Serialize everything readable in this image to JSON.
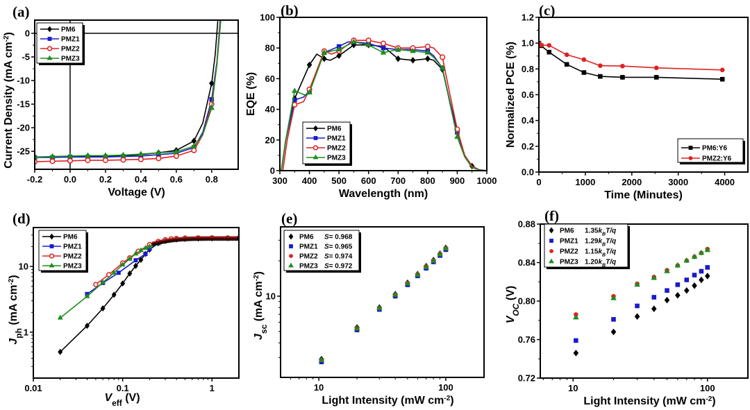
{
  "colors": {
    "PM6": "#000000",
    "PMZ1": "#1a1acc",
    "PMZ2": "#e02020",
    "PMZ3": "#1e8c1e",
    "PM6:Y6": "#000000",
    "PMZ2:Y6": "#e02020"
  },
  "chart_data": [
    {
      "panel": "(a)",
      "type": "line",
      "xlabel": "Voltage (V)",
      "ylabel": "Current Density (mA cm⁻²)",
      "xlim": [
        -0.2,
        0.95
      ],
      "ylim": [
        -28.8,
        2.8
      ],
      "xticks": [
        -0.2,
        0.0,
        0.2,
        0.4,
        0.6,
        0.8
      ],
      "xtick_labels": [
        "-0.2",
        "0.0",
        "0.2",
        "0.4",
        "0.6",
        "0.8"
      ],
      "yticks": [
        0,
        -5,
        -10,
        -15,
        -20,
        -25
      ],
      "ytick_labels": [
        "0",
        "-5",
        "-10",
        "-15",
        "-20",
        "-25"
      ],
      "legend": "top-left",
      "reference_lines": {
        "x": 0,
        "y": 0
      },
      "series": [
        {
          "name": "PM6",
          "marker": "diamond",
          "x": [
            -0.2,
            -0.1,
            0.0,
            0.1,
            0.2,
            0.3,
            0.4,
            0.5,
            0.6,
            0.7,
            0.75,
            0.8,
            0.82,
            0.835
          ],
          "y": [
            -26.2,
            -26.2,
            -26.1,
            -26.0,
            -26.0,
            -25.9,
            -25.7,
            -25.3,
            -24.8,
            -22.8,
            -19.0,
            -10.6,
            -4.5,
            2.8
          ],
          "marker_x": [
            -0.2,
            -0.1,
            0.0,
            0.1,
            0.2,
            0.3,
            0.4,
            0.5,
            0.6,
            0.7,
            0.8
          ]
        },
        {
          "name": "PMZ1",
          "marker": "square",
          "x": [
            -0.2,
            -0.1,
            0.0,
            0.1,
            0.2,
            0.3,
            0.4,
            0.5,
            0.6,
            0.7,
            0.75,
            0.8,
            0.83,
            0.848
          ],
          "y": [
            -26.3,
            -26.3,
            -26.2,
            -26.2,
            -26.2,
            -26.1,
            -26.0,
            -25.7,
            -25.4,
            -24.2,
            -21.0,
            -14.0,
            -6.0,
            2.8
          ],
          "marker_x": [
            -0.2,
            -0.1,
            0.0,
            0.1,
            0.2,
            0.3,
            0.4,
            0.5,
            0.6,
            0.7,
            0.8
          ]
        },
        {
          "name": "PMZ2",
          "marker": "circle-open",
          "x": [
            -0.2,
            -0.1,
            0.0,
            0.1,
            0.2,
            0.3,
            0.4,
            0.5,
            0.6,
            0.7,
            0.75,
            0.8,
            0.83,
            0.85
          ],
          "y": [
            -27.2,
            -27.1,
            -27.0,
            -26.9,
            -26.9,
            -26.8,
            -26.7,
            -26.5,
            -26.0,
            -24.8,
            -21.5,
            -15.0,
            -6.5,
            2.8
          ],
          "marker_x": [
            -0.2,
            -0.1,
            0.0,
            0.1,
            0.2,
            0.3,
            0.4,
            0.5,
            0.6,
            0.7,
            0.8
          ]
        },
        {
          "name": "PMZ3",
          "marker": "triangle",
          "x": [
            -0.2,
            -0.1,
            0.0,
            0.1,
            0.2,
            0.3,
            0.4,
            0.5,
            0.6,
            0.7,
            0.75,
            0.8,
            0.83,
            0.852
          ],
          "y": [
            -26.2,
            -26.1,
            -26.0,
            -25.9,
            -25.9,
            -25.8,
            -25.6,
            -25.3,
            -25.1,
            -23.9,
            -21.5,
            -15.8,
            -6.5,
            2.8
          ],
          "marker_x": [
            -0.2,
            -0.1,
            0.0,
            0.1,
            0.2,
            0.3,
            0.4,
            0.5,
            0.6,
            0.7,
            0.8
          ]
        }
      ]
    },
    {
      "panel": "(b)",
      "type": "line",
      "xlabel": "Wavelength (nm)",
      "ylabel": "EQE (%)",
      "xlim": [
        300,
        1000
      ],
      "ylim": [
        0,
        100
      ],
      "xticks": [
        300,
        400,
        500,
        600,
        700,
        800,
        900,
        1000
      ],
      "xtick_labels": [
        "300",
        "400",
        "500",
        "600",
        "700",
        "800",
        "900",
        "1000"
      ],
      "yticks": [
        0,
        20,
        40,
        60,
        80,
        100
      ],
      "ytick_labels": [
        "0",
        "20",
        "40",
        "60",
        "80",
        "100"
      ],
      "legend": "bottom-left",
      "series": [
        {
          "name": "PM6",
          "marker": "diamond",
          "x": [
            305,
            320,
            350,
            400,
            425,
            450,
            470,
            500,
            550,
            600,
            650,
            700,
            750,
            800,
            820,
            850,
            875,
            900,
            925,
            950,
            975,
            1000
          ],
          "y": [
            0,
            20,
            47,
            69,
            76,
            73,
            72,
            75,
            82,
            82,
            81,
            73,
            72,
            73,
            72,
            66,
            45,
            26,
            10,
            3,
            0.5,
            0
          ],
          "marker_x": [
            350,
            400,
            450,
            500,
            550,
            600,
            650,
            700,
            750,
            800,
            850,
            900,
            950
          ]
        },
        {
          "name": "PMZ1",
          "marker": "square",
          "x": [
            305,
            320,
            350,
            380,
            400,
            450,
            500,
            530,
            550,
            600,
            650,
            700,
            750,
            800,
            820,
            850,
            875,
            900,
            925,
            950,
            975,
            1000
          ],
          "y": [
            0,
            20,
            46,
            48,
            52,
            77,
            81,
            84,
            84,
            83,
            80,
            79,
            79,
            78,
            75,
            67,
            45,
            25,
            10,
            3,
            0.5,
            0
          ],
          "marker_x": [
            350,
            400,
            450,
            500,
            550,
            600,
            650,
            700,
            750,
            800,
            850,
            900
          ]
        },
        {
          "name": "PMZ2",
          "marker": "circle-open",
          "x": [
            310,
            325,
            350,
            380,
            400,
            450,
            475,
            500,
            550,
            600,
            650,
            700,
            750,
            800,
            820,
            850,
            875,
            900,
            925,
            950,
            975,
            1000
          ],
          "y": [
            0,
            20,
            43,
            45,
            53,
            78,
            76,
            78,
            85,
            85,
            83,
            80,
            80,
            81,
            80,
            74,
            50,
            27,
            10,
            3,
            0.5,
            0
          ],
          "marker_x": [
            350,
            400,
            450,
            500,
            550,
            600,
            650,
            700,
            750,
            800,
            850,
            900
          ]
        },
        {
          "name": "PMZ3",
          "marker": "triangle",
          "x": [
            305,
            320,
            350,
            390,
            400,
            450,
            500,
            550,
            600,
            650,
            700,
            750,
            800,
            820,
            850,
            875,
            900,
            925,
            950,
            975,
            1000
          ],
          "y": [
            0,
            20,
            52,
            49,
            51,
            77,
            79,
            84,
            82,
            77,
            79,
            78,
            77,
            74,
            67,
            44,
            22,
            9,
            2,
            0.5,
            0
          ],
          "marker_x": [
            350,
            400,
            450,
            500,
            550,
            600,
            650,
            700,
            750,
            800,
            850,
            900
          ]
        }
      ]
    },
    {
      "panel": "(c)",
      "type": "line",
      "xlabel": "Time (Minutes)",
      "ylabel": "Normalized PCE (%)",
      "xlim": [
        0,
        4500
      ],
      "ylim": [
        0,
        1.2
      ],
      "xticks": [
        0,
        1000,
        2000,
        3000,
        4000
      ],
      "xtick_labels": [
        "0",
        "1000",
        "2000",
        "3000",
        "4000"
      ],
      "yticks": [
        0,
        0.2,
        0.4,
        0.6,
        0.8,
        1.0,
        1.2
      ],
      "ytick_labels": [
        "0.0",
        "0.2",
        "0.4",
        "0.6",
        "0.8",
        "1.0",
        "1.2"
      ],
      "legend": "bottom-right",
      "series": [
        {
          "name": "PM6:Y6",
          "marker": "square",
          "x": [
            0,
            50,
            220,
            600,
            970,
            1320,
            1800,
            2530,
            3950
          ],
          "y": [
            1.0,
            0.98,
            0.93,
            0.835,
            0.772,
            0.742,
            0.735,
            0.735,
            0.72
          ]
        },
        {
          "name": "PMZ2:Y6",
          "marker": "circle",
          "x": [
            0,
            50,
            220,
            600,
            970,
            1320,
            1800,
            2530,
            3950
          ],
          "y": [
            1.0,
            0.985,
            0.983,
            0.91,
            0.872,
            0.825,
            0.822,
            0.808,
            0.792
          ]
        }
      ]
    },
    {
      "panel": "(d)",
      "type": "line",
      "xscale": "log",
      "yscale": "log",
      "xlabel": "V_eff (V)",
      "ylabel": "J_ph (mA cm⁻²)",
      "xlim": [
        0.01,
        2
      ],
      "ylim": [
        0.2,
        39
      ],
      "xticks": [
        0.01,
        0.1,
        1
      ],
      "xtick_labels": [
        "0.01",
        "0.1",
        "1"
      ],
      "yticks": [
        1,
        10
      ],
      "ytick_labels": [
        "1",
        "10"
      ],
      "legend": "top-left",
      "series": [
        {
          "name": "PM6",
          "marker": "diamond",
          "x": [
            0.02,
            0.04,
            0.06,
            0.08,
            0.1,
            0.12,
            0.14,
            0.16,
            0.18,
            0.2,
            0.25,
            0.3,
            0.4,
            0.5,
            0.7,
            1.0,
            1.5,
            2.0
          ],
          "y": [
            0.5,
            1.25,
            2.3,
            3.7,
            5.5,
            7.8,
            10.2,
            12.6,
            15.5,
            18.0,
            22.5,
            24.5,
            25.8,
            26.3,
            26.6,
            26.8,
            26.9,
            27.0
          ]
        },
        {
          "name": "PMZ1",
          "marker": "square",
          "x": [
            0.04,
            0.06,
            0.09,
            0.14,
            0.18,
            0.2,
            0.25,
            0.3,
            0.4,
            0.5,
            0.7,
            1.0,
            1.5,
            2.0
          ],
          "y": [
            3.8,
            5.6,
            8.0,
            12.4,
            15.5,
            18.5,
            22.5,
            24.5,
            25.8,
            26.3,
            26.6,
            26.8,
            26.9,
            27.0
          ]
        },
        {
          "name": "PMZ2",
          "marker": "circle-open",
          "x": [
            0.05,
            0.07,
            0.1,
            0.12,
            0.15,
            0.2,
            0.25,
            0.3,
            0.35,
            0.4,
            0.5,
            0.7,
            1.0,
            1.5,
            2.0
          ],
          "y": [
            5.3,
            7.5,
            11.3,
            13.5,
            17.0,
            21.5,
            24.0,
            25.5,
            26.3,
            26.7,
            27.0,
            27.2,
            27.2,
            27.1,
            27.0
          ]
        },
        {
          "name": "PMZ3",
          "marker": "triangle",
          "x": [
            0.02,
            0.04,
            0.06,
            0.08,
            0.1,
            0.12,
            0.14,
            0.16,
            0.18,
            0.2,
            0.25,
            0.3,
            0.4,
            0.5,
            0.7,
            1.0,
            1.5,
            2.0
          ],
          "y": [
            1.65,
            3.5,
            5.7,
            8.0,
            10.6,
            13.0,
            15.6,
            17.5,
            19.0,
            20.0,
            22.5,
            24.5,
            25.8,
            26.3,
            26.6,
            26.8,
            26.9,
            27.0
          ]
        }
      ]
    },
    {
      "panel": "(e)",
      "type": "scatter",
      "xscale": "log",
      "yscale": "log",
      "xlabel": "Light Intensity (mW cm⁻²)",
      "ylabel": "J_sc (mA cm⁻²)",
      "xlim": [
        5,
        200
      ],
      "ylim": [
        2.03,
        39
      ],
      "xticks": [
        10,
        100
      ],
      "xtick_labels": [
        "10",
        "100"
      ],
      "yticks": [
        10
      ],
      "ytick_labels": [
        "10"
      ],
      "legend": "top-left",
      "x": [
        10.5,
        20,
        30,
        40,
        50,
        60,
        70,
        80,
        90,
        100
      ],
      "series": [
        {
          "name": "PM6",
          "S": "S= 0.968",
          "marker": "diamond",
          "values": [
            2.9,
            5.4,
            8.0,
            10.4,
            13.0,
            15.4,
            18.0,
            20.3,
            23.0,
            25.8
          ]
        },
        {
          "name": "PMZ1",
          "S": "S= 0.965",
          "marker": "square",
          "values": [
            2.75,
            5.15,
            7.7,
            10.0,
            12.5,
            14.9,
            17.3,
            19.6,
            22.2,
            24.9
          ]
        },
        {
          "name": "PMZ2",
          "S": "S= 0.974",
          "marker": "circle",
          "values": [
            2.85,
            5.3,
            7.9,
            10.3,
            12.9,
            15.3,
            17.8,
            20.1,
            22.8,
            25.6
          ]
        },
        {
          "name": "PMZ3",
          "S": "S= 0.972",
          "marker": "triangle",
          "values": [
            2.85,
            5.3,
            7.9,
            10.3,
            12.8,
            15.2,
            17.7,
            20.0,
            22.7,
            25.5
          ]
        }
      ]
    },
    {
      "panel": "(f)",
      "type": "scatter",
      "xscale": "log",
      "xlabel": "Light Intensity (mW cm⁻²)",
      "ylabel": "V_OC (V)",
      "xlim": [
        5.7,
        200
      ],
      "ylim": [
        0.72,
        0.88
      ],
      "xticks": [
        10,
        100
      ],
      "xtick_labels": [
        "10",
        "100"
      ],
      "yticks": [
        0.72,
        0.76,
        0.8,
        0.84,
        0.88
      ],
      "ytick_labels": [
        "0.72",
        "0.76",
        "0.80",
        "0.84",
        "0.88"
      ],
      "legend": "top-left",
      "x": [
        10.5,
        20,
        30,
        40,
        50,
        60,
        70,
        80,
        90,
        100
      ],
      "series": [
        {
          "name": "PM6",
          "slope_value": "1.35",
          "marker": "diamond",
          "values": [
            0.746,
            0.768,
            0.784,
            0.792,
            0.801,
            0.806,
            0.811,
            0.816,
            0.822,
            0.826
          ]
        },
        {
          "name": "PMZ1",
          "slope_value": "1.29",
          "marker": "square",
          "values": [
            0.759,
            0.781,
            0.795,
            0.804,
            0.811,
            0.817,
            0.822,
            0.827,
            0.831,
            0.835
          ]
        },
        {
          "name": "PMZ2",
          "slope_value": "1.15",
          "marker": "circle",
          "values": [
            0.786,
            0.805,
            0.818,
            0.825,
            0.832,
            0.837,
            0.842,
            0.846,
            0.85,
            0.854
          ]
        },
        {
          "name": "PMZ3",
          "slope_value": "1.20",
          "marker": "triangle",
          "values": [
            0.783,
            0.803,
            0.817,
            0.824,
            0.831,
            0.837,
            0.842,
            0.846,
            0.85,
            0.853
          ]
        }
      ],
      "slope_unit": "k_B T/q"
    }
  ]
}
